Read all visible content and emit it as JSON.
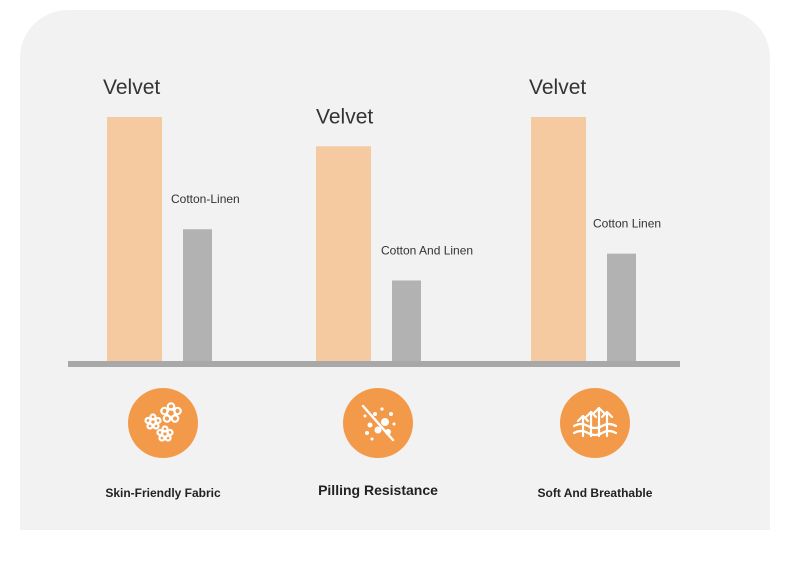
{
  "chart_data": [
    {
      "type": "bar",
      "group": "Skin-Friendly Fabric",
      "categories": [
        "Velvet",
        "Cotton-Linen"
      ],
      "values": [
        100,
        54
      ]
    },
    {
      "type": "bar",
      "group": "Pilling Resistance",
      "categories": [
        "Velvet",
        "Cotton And Linen"
      ],
      "values": [
        88,
        33
      ]
    },
    {
      "type": "bar",
      "group": "Soft And Breathable",
      "categories": [
        "Velvet",
        "Cotton Linen"
      ],
      "values": [
        100,
        44
      ]
    }
  ],
  "colors": {
    "velvet": "#f5caa0",
    "other": "#b2b2b2",
    "baseline": "#a8a8a8",
    "icon_bg": "#f29a4a"
  },
  "features": [
    {
      "label": "Skin-Friendly Fabric",
      "icon": "flowers-icon"
    },
    {
      "label": "Pilling Resistance",
      "icon": "no-pilling-icon"
    },
    {
      "label": "Soft And Breathable",
      "icon": "breathable-arrows-icon"
    }
  ]
}
